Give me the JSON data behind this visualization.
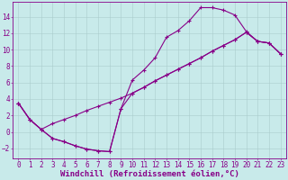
{
  "xlabel": "Windchill (Refroidissement éolien,°C)",
  "background_color": "#c8eaea",
  "line_color": "#880088",
  "xlim": [
    -0.5,
    23.5
  ],
  "ylim": [
    -3.2,
    15.8
  ],
  "xticks": [
    0,
    1,
    2,
    3,
    4,
    5,
    6,
    7,
    8,
    9,
    10,
    11,
    12,
    13,
    14,
    15,
    16,
    17,
    18,
    19,
    20,
    21,
    22,
    23
  ],
  "yticks": [
    -2,
    0,
    2,
    4,
    6,
    8,
    10,
    12,
    14
  ],
  "curve1_x": [
    0,
    1,
    2,
    3,
    4,
    5,
    6,
    7,
    8,
    9,
    10,
    11,
    12,
    13,
    14,
    15,
    16,
    17,
    18,
    19,
    20,
    21,
    22,
    23
  ],
  "curve1_y": [
    3.5,
    1.5,
    0.3,
    -0.8,
    -1.2,
    -1.7,
    -2.1,
    -2.3,
    -2.4,
    2.8,
    6.3,
    7.5,
    9.0,
    11.5,
    12.3,
    13.5,
    15.1,
    15.1,
    14.8,
    14.2,
    12.2,
    11.0,
    10.8,
    9.5
  ],
  "curve2_x": [
    0,
    1,
    2,
    3,
    4,
    5,
    6,
    7,
    8,
    9,
    10,
    11,
    12,
    13,
    14,
    15,
    16,
    17,
    18,
    19,
    20,
    21,
    22,
    23
  ],
  "curve2_y": [
    3.5,
    1.5,
    0.3,
    -0.8,
    -1.2,
    -1.7,
    -2.1,
    -2.3,
    -2.4,
    2.8,
    4.7,
    5.4,
    6.2,
    6.9,
    7.6,
    8.3,
    9.0,
    9.8,
    10.5,
    11.2,
    12.1,
    11.0,
    10.8,
    9.5
  ],
  "curve3_x": [
    0,
    1,
    2,
    3,
    4,
    5,
    6,
    7,
    8,
    9,
    10,
    11,
    12,
    13,
    14,
    15,
    16,
    17,
    18,
    19,
    20,
    21,
    22,
    23
  ],
  "curve3_y": [
    3.5,
    1.5,
    0.3,
    1.0,
    1.5,
    2.0,
    2.6,
    3.1,
    3.6,
    4.1,
    4.7,
    5.4,
    6.2,
    6.9,
    7.6,
    8.3,
    9.0,
    9.8,
    10.5,
    11.2,
    12.1,
    11.0,
    10.8,
    9.5
  ],
  "grid_color": "#aacccc",
  "tick_fontsize": 5.5,
  "xlabel_fontsize": 6.5
}
